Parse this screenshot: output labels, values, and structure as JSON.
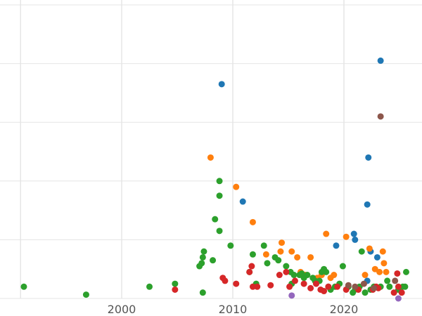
{
  "chart_data": {
    "type": "scatter",
    "title": "",
    "xlabel": "",
    "ylabel": "",
    "xlim": [
      1990,
      2027
    ],
    "ylim": [
      0,
      100
    ],
    "grid": true,
    "x_ticks": [
      2000,
      2010,
      2020
    ],
    "x_tick_labels": [
      "2000",
      "2010",
      "2020"
    ],
    "y_gridlines": [
      0,
      20,
      40,
      60,
      80,
      100
    ],
    "series": [
      {
        "color": "#1f77b4",
        "points": [
          [
            2009.0,
            73.0
          ],
          [
            2010.9,
            33.0
          ],
          [
            2019.3,
            18.0
          ],
          [
            2020.9,
            22.0
          ],
          [
            2021.0,
            20.0
          ],
          [
            2022.1,
            32.0
          ],
          [
            2022.2,
            48.0
          ],
          [
            2023.0,
            14.0
          ],
          [
            2023.3,
            81.0
          ],
          [
            2022.1,
            6.0
          ],
          [
            2022.4,
            16.0
          ]
        ]
      },
      {
        "color": "#ff7f0e",
        "points": [
          [
            2008.0,
            48.0
          ],
          [
            2010.3,
            38.0
          ],
          [
            2011.8,
            26.0
          ],
          [
            2013.0,
            15.0
          ],
          [
            2014.4,
            19.0
          ],
          [
            2014.3,
            16.0
          ],
          [
            2015.3,
            16.0
          ],
          [
            2015.8,
            14.0
          ],
          [
            2016.1,
            9.0
          ],
          [
            2016.5,
            8.0
          ],
          [
            2017.0,
            14.0
          ],
          [
            2017.6,
            7.0
          ],
          [
            2018.0,
            8.0
          ],
          [
            2018.4,
            22.0
          ],
          [
            2018.8,
            7.0
          ],
          [
            2019.1,
            8.0
          ],
          [
            2020.2,
            21.0
          ],
          [
            2021.9,
            8.0
          ],
          [
            2022.3,
            17.0
          ],
          [
            2022.8,
            10.0
          ],
          [
            2023.2,
            9.0
          ],
          [
            2023.5,
            16.0
          ],
          [
            2023.6,
            12.0
          ],
          [
            2023.8,
            9.0
          ]
        ]
      },
      {
        "color": "#2ca02c",
        "points": [
          [
            1991.2,
            4.0
          ],
          [
            1996.8,
            1.3
          ],
          [
            2002.5,
            4.0
          ],
          [
            2004.8,
            5.0
          ],
          [
            2007.0,
            11.0
          ],
          [
            2007.2,
            12.0
          ],
          [
            2007.3,
            14.0
          ],
          [
            2007.4,
            16.0
          ],
          [
            2007.3,
            2.0
          ],
          [
            2008.2,
            13.0
          ],
          [
            2008.4,
            27.0
          ],
          [
            2008.8,
            23.0
          ],
          [
            2008.8,
            35.0
          ],
          [
            2008.8,
            40.0
          ],
          [
            2009.8,
            18.0
          ],
          [
            2011.5,
            9.0
          ],
          [
            2011.8,
            15.0
          ],
          [
            2012.1,
            5.0
          ],
          [
            2012.8,
            18.0
          ],
          [
            2013.1,
            12.0
          ],
          [
            2013.8,
            14.0
          ],
          [
            2014.1,
            13.0
          ],
          [
            2014.8,
            11.0
          ],
          [
            2015.2,
            9.0
          ],
          [
            2015.3,
            5.0
          ],
          [
            2015.5,
            8.0
          ],
          [
            2016.0,
            8.0
          ],
          [
            2016.2,
            8.5
          ],
          [
            2016.4,
            7.0
          ],
          [
            2016.7,
            8.0
          ],
          [
            2017.2,
            7.0
          ],
          [
            2017.4,
            6.0
          ],
          [
            2017.8,
            6.0
          ],
          [
            2018.0,
            9.0
          ],
          [
            2018.2,
            10.0
          ],
          [
            2018.4,
            9.0
          ],
          [
            2018.6,
            4.0
          ],
          [
            2018.8,
            3.0
          ],
          [
            2019.2,
            4.0
          ],
          [
            2019.6,
            5.0
          ],
          [
            2019.9,
            11.0
          ],
          [
            2020.4,
            4.0
          ],
          [
            2020.8,
            2.0
          ],
          [
            2021.0,
            3.0
          ],
          [
            2021.4,
            4.0
          ],
          [
            2021.6,
            16.0
          ],
          [
            2021.9,
            2.0
          ],
          [
            2022.4,
            3.0
          ],
          [
            2022.7,
            4.0
          ],
          [
            2023.3,
            4.0
          ],
          [
            2023.9,
            6.0
          ],
          [
            2024.1,
            4.0
          ],
          [
            2024.9,
            3.0
          ],
          [
            2025.3,
            4.0
          ],
          [
            2025.5,
            4.0
          ],
          [
            2025.6,
            9.0
          ]
        ]
      },
      {
        "color": "#d62728",
        "points": [
          [
            2004.8,
            3.0
          ],
          [
            2009.1,
            7.0
          ],
          [
            2009.3,
            6.0
          ],
          [
            2010.3,
            5.0
          ],
          [
            2011.5,
            9.0
          ],
          [
            2011.7,
            11.0
          ],
          [
            2011.8,
            4.0
          ],
          [
            2012.2,
            4.0
          ],
          [
            2013.4,
            4.5
          ],
          [
            2014.2,
            8.0
          ],
          [
            2014.8,
            9.0
          ],
          [
            2015.1,
            4.0
          ],
          [
            2015.6,
            6.0
          ],
          [
            2016.4,
            5.0
          ],
          [
            2017.0,
            3.5
          ],
          [
            2017.5,
            5.0
          ],
          [
            2017.9,
            3.0
          ],
          [
            2018.2,
            2.5
          ],
          [
            2018.6,
            4.0
          ],
          [
            2019.4,
            4.0
          ],
          [
            2020.2,
            3.0
          ],
          [
            2021.3,
            3.0
          ],
          [
            2022.6,
            3.0
          ],
          [
            2022.9,
            4.0
          ],
          [
            2023.1,
            3.5
          ],
          [
            2024.5,
            2.0
          ],
          [
            2024.8,
            8.5
          ],
          [
            2024.9,
            4.0
          ],
          [
            2025.2,
            2.0
          ]
        ]
      },
      {
        "color": "#9467bd",
        "points": [
          [
            2015.3,
            1.0
          ],
          [
            2024.9,
            0.0
          ]
        ]
      },
      {
        "color": "#8c564b",
        "points": [
          [
            2020.4,
            4.5
          ],
          [
            2021.0,
            4.0
          ],
          [
            2021.8,
            5.0
          ],
          [
            2022.7,
            3.5
          ],
          [
            2023.3,
            62.0
          ],
          [
            2024.6,
            6.0
          ]
        ]
      }
    ]
  }
}
